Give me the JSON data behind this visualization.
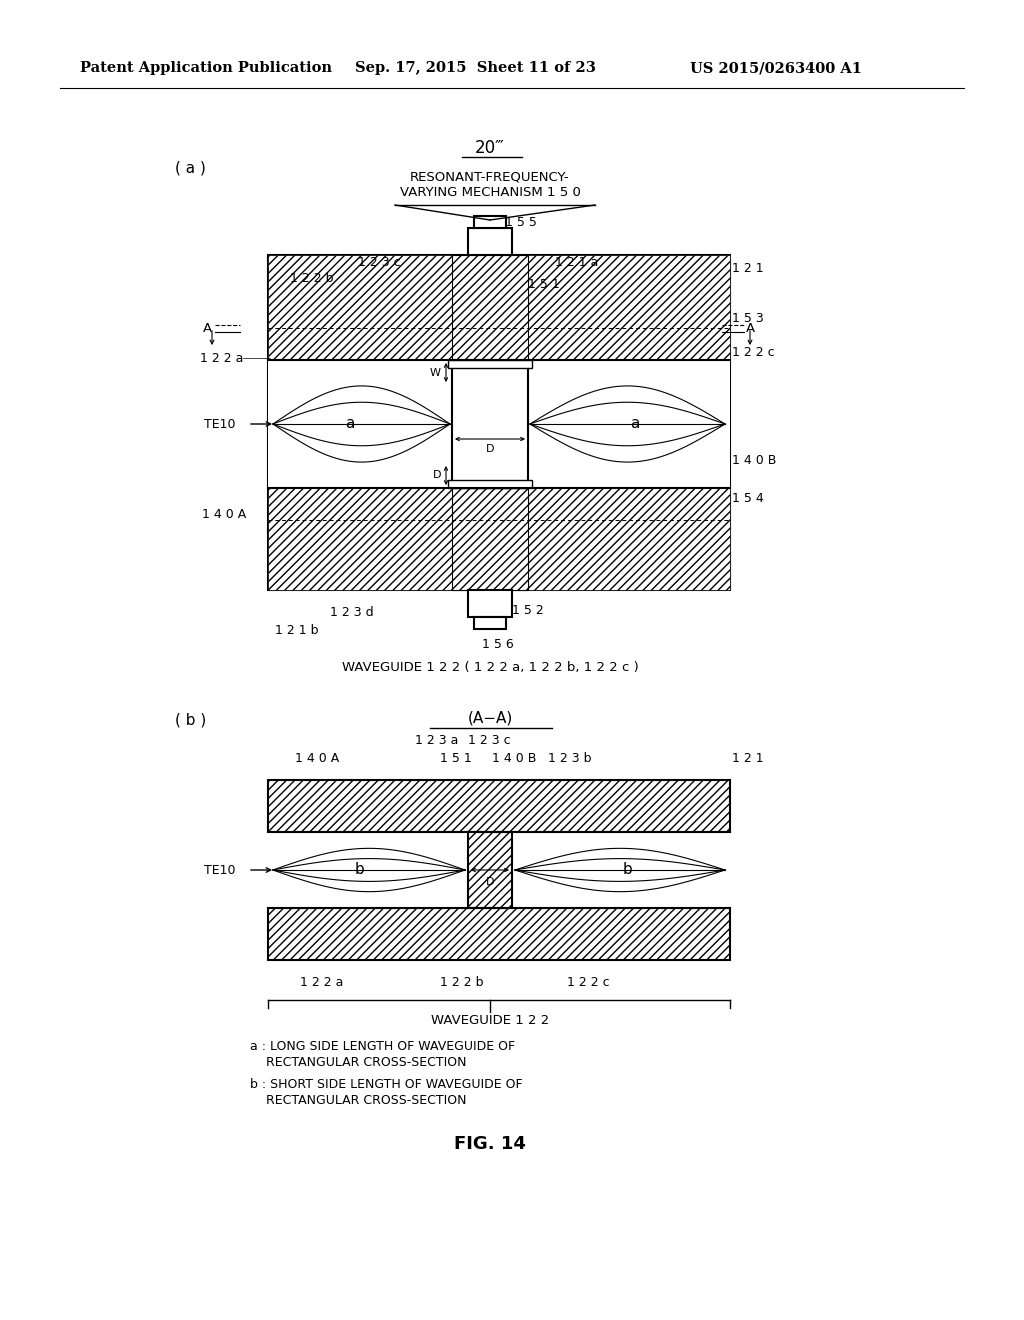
{
  "title_header": "Patent Application Publication",
  "title_date": "Sep. 17, 2015  Sheet 11 of 23",
  "title_patent": "US 2015/0263400 A1",
  "bg_color": "#ffffff",
  "fig_label_a": "( a )",
  "fig_label_b": "( b )",
  "fig14_label": "FIG. 14",
  "diagram_label_20": "20‴",
  "text_resonant_1": "RESONANT-FREQUENCY-",
  "text_resonant_2": "VARYING MECHANISM 1 5 0",
  "text_waveguide_a": "WAVEGUIDE 1 2 2 ( 1 2 2 a, 1 2 2 b, 1 2 2 c )",
  "text_waveguide_b": "WAVEGUIDE 1 2 2",
  "text_section": "(A−A)",
  "text_note_a": "a : LONG SIDE LENGTH OF WAVEGUIDE OF",
  "text_note_a2": "    RECTANGULAR CROSS-SECTION",
  "text_note_b": "b : SHORT SIDE LENGTH OF WAVEGUIDE OF",
  "text_note_b2": "    RECTANGULAR CROSS-SECTION"
}
